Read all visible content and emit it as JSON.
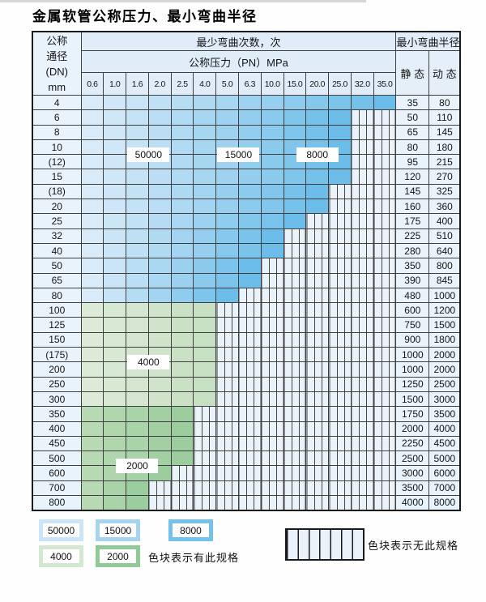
{
  "title": "金属软管公称压力、最小弯曲半径",
  "table": {
    "dn_header_lines": [
      "公称",
      "通径",
      "(DN)",
      "mm"
    ],
    "cycles_header": "最少弯曲次数，次",
    "radius_header": "最小弯曲半径",
    "pressure_header": "公称压力（PN）MPa",
    "static_label": "静 态",
    "dynamic_label": "动 态",
    "pressures": [
      "0.6",
      "1.0",
      "1.6",
      "2.0",
      "2.5",
      "4.0",
      "5.0",
      "6.3",
      "10.0",
      "15.0",
      "20.0",
      "25.0",
      "32.0",
      "35.0"
    ],
    "rows": [
      {
        "dn": "4",
        "max_pressure": "35.0",
        "zone": "blue",
        "static": "35",
        "dynamic": "80"
      },
      {
        "dn": "6",
        "max_pressure": "25.0",
        "zone": "blue",
        "static": "50",
        "dynamic": "110"
      },
      {
        "dn": "8",
        "max_pressure": "25.0",
        "zone": "blue",
        "static": "65",
        "dynamic": "145"
      },
      {
        "dn": "10",
        "max_pressure": "25.0",
        "zone": "blue",
        "static": "80",
        "dynamic": "180"
      },
      {
        "dn": "(12)",
        "max_pressure": "25.0",
        "zone": "blue",
        "static": "95",
        "dynamic": "215"
      },
      {
        "dn": "15",
        "max_pressure": "25.0",
        "zone": "blue",
        "static": "120",
        "dynamic": "270"
      },
      {
        "dn": "(18)",
        "max_pressure": "20.0",
        "zone": "blue",
        "static": "145",
        "dynamic": "325"
      },
      {
        "dn": "20",
        "max_pressure": "20.0",
        "zone": "blue",
        "static": "160",
        "dynamic": "360"
      },
      {
        "dn": "25",
        "max_pressure": "15.0",
        "zone": "blue",
        "static": "175",
        "dynamic": "400"
      },
      {
        "dn": "32",
        "max_pressure": "10.0",
        "zone": "blue",
        "static": "225",
        "dynamic": "510"
      },
      {
        "dn": "40",
        "max_pressure": "10.0",
        "zone": "blue",
        "static": "280",
        "dynamic": "640"
      },
      {
        "dn": "50",
        "max_pressure": "6.3",
        "zone": "blue",
        "static": "350",
        "dynamic": "800"
      },
      {
        "dn": "65",
        "max_pressure": "6.3",
        "zone": "blue",
        "static": "390",
        "dynamic": "845"
      },
      {
        "dn": "80",
        "max_pressure": "5.0",
        "zone": "blue",
        "static": "480",
        "dynamic": "1000"
      },
      {
        "dn": "100",
        "max_pressure": "4.0",
        "zone": "green4000",
        "static": "600",
        "dynamic": "1200"
      },
      {
        "dn": "125",
        "max_pressure": "4.0",
        "zone": "green4000",
        "static": "750",
        "dynamic": "1500"
      },
      {
        "dn": "150",
        "max_pressure": "4.0",
        "zone": "green4000",
        "static": "900",
        "dynamic": "1800"
      },
      {
        "dn": "(175)",
        "max_pressure": "4.0",
        "zone": "green4000",
        "static": "1000",
        "dynamic": "2000"
      },
      {
        "dn": "200",
        "max_pressure": "4.0",
        "zone": "green4000",
        "static": "1000",
        "dynamic": "2000"
      },
      {
        "dn": "250",
        "max_pressure": "4.0",
        "zone": "green4000",
        "static": "1250",
        "dynamic": "2500"
      },
      {
        "dn": "300",
        "max_pressure": "4.0",
        "zone": "green4000",
        "static": "1500",
        "dynamic": "3000"
      },
      {
        "dn": "350",
        "max_pressure": "2.5",
        "zone": "green2000",
        "static": "1750",
        "dynamic": "3500"
      },
      {
        "dn": "400",
        "max_pressure": "2.5",
        "zone": "green2000",
        "static": "2000",
        "dynamic": "4000"
      },
      {
        "dn": "450",
        "max_pressure": "2.5",
        "zone": "green2000",
        "static": "2250",
        "dynamic": "4500"
      },
      {
        "dn": "500",
        "max_pressure": "2.5",
        "zone": "green2000",
        "static": "2500",
        "dynamic": "5000"
      },
      {
        "dn": "600",
        "max_pressure": "2.0",
        "zone": "green2000",
        "static": "3000",
        "dynamic": "6000"
      },
      {
        "dn": "700",
        "max_pressure": "1.6",
        "zone": "green2000",
        "static": "3500",
        "dynamic": "7000"
      },
      {
        "dn": "800",
        "max_pressure": "1.6",
        "zone": "green2000",
        "static": "4000",
        "dynamic": "8000"
      }
    ],
    "cycle_labels": [
      {
        "label": "50000",
        "between_cols": [
          "1.6",
          "2.0"
        ],
        "between_rows": [
          "10",
          "(12)"
        ]
      },
      {
        "label": "15000",
        "between_cols": [
          "5.0",
          "6.3"
        ],
        "between_rows": [
          "10",
          "(12)"
        ]
      },
      {
        "label": "8000",
        "at_col": "20.0",
        "between_rows": [
          "10",
          "(12)"
        ]
      },
      {
        "label": "4000",
        "between_cols": [
          "1.6",
          "2.0"
        ],
        "between_rows": [
          "(175)",
          "200"
        ]
      },
      {
        "label": "2000",
        "at_col": "1.6",
        "between_rows": [
          "500",
          "600"
        ]
      }
    ]
  },
  "legend": {
    "available_note": "色块表示有此规格",
    "unavailable_note": "色块表示无此规格",
    "swatches": [
      {
        "label": "50000",
        "color": "#cbe4f7",
        "row": 1,
        "col": 1
      },
      {
        "label": "15000",
        "color": "#a5d3f0",
        "row": 1,
        "col": 2
      },
      {
        "label": "8000",
        "color": "#74c1ec",
        "row": 1,
        "col": 3
      },
      {
        "label": "4000",
        "color": "#d3e8d0",
        "row": 2,
        "col": 1
      },
      {
        "label": "2000",
        "color": "#90ca97",
        "row": 2,
        "col": 2
      }
    ]
  },
  "colors": {
    "zone_gradients": {
      "blue": [
        "#d9ebf8",
        "#6cbde9"
      ],
      "green4000": [
        "#dcebd7",
        "#c7dfc2"
      ],
      "green2000": [
        "#b7d9b3",
        "#9bcd9e"
      ]
    },
    "header_bg": "#e0edf8",
    "label_cell_bg": "#e9f3fb",
    "nospec_bg": "#ebf3fa",
    "grid_line": "#3f3f3f"
  }
}
